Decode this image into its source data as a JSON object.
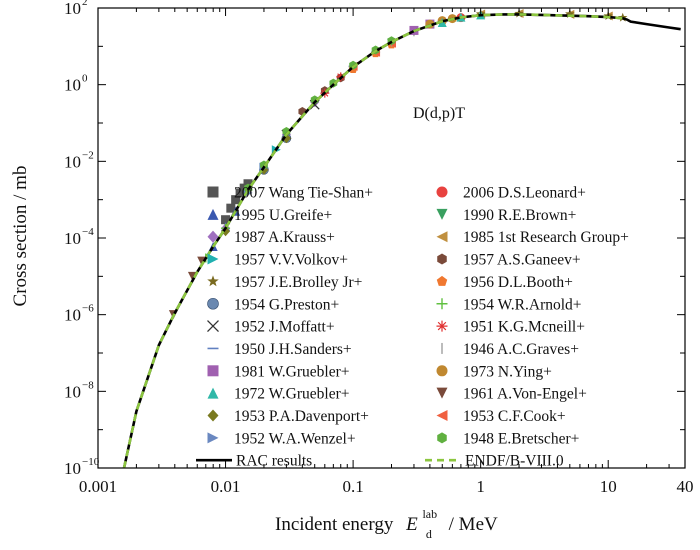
{
  "chart_data": {
    "type": "scatter",
    "title": "",
    "annotation": "D(d,p)T",
    "xlabel": "Incident energy",
    "xlabel_symbol": "E",
    "xlabel_sup": "lab",
    "xlabel_sub": "d",
    "xlabel_unit": "/ MeV",
    "ylabel": "Cross section / mb",
    "x_scale": "log",
    "y_scale": "log",
    "xlim": [
      0.001,
      40
    ],
    "ylim": [
      1e-10,
      100
    ],
    "x_ticks": [
      {
        "value": 0.001,
        "label": "0.001"
      },
      {
        "value": 0.01,
        "label": "0.01"
      },
      {
        "value": 0.1,
        "label": "0.1"
      },
      {
        "value": 1,
        "label": "1"
      },
      {
        "value": 10,
        "label": "10"
      },
      {
        "value": 40,
        "label": "40"
      }
    ],
    "y_ticks": [
      {
        "exp": -10,
        "base": "10",
        "sup": "−10"
      },
      {
        "exp": -8,
        "base": "10",
        "sup": "−8"
      },
      {
        "exp": -6,
        "base": "10",
        "sup": "−6"
      },
      {
        "exp": -4,
        "base": "10",
        "sup": "−4"
      },
      {
        "exp": -2,
        "base": "10",
        "sup": "−2"
      },
      {
        "exp": 0,
        "base": "10",
        "sup": "0"
      },
      {
        "exp": 2,
        "base": "10",
        "sup": "2"
      }
    ],
    "grid": false,
    "legend_placement": "lower-right, two columns",
    "curves": [
      {
        "name": "RAC results",
        "color": "#000000",
        "style": "solid",
        "x": [
          0.0016,
          0.002,
          0.003,
          0.004,
          0.006,
          0.008,
          0.01,
          0.015,
          0.02,
          0.03,
          0.05,
          0.07,
          0.1,
          0.15,
          0.2,
          0.3,
          0.5,
          0.7,
          1.0,
          1.5,
          2,
          3,
          5,
          7,
          10,
          13,
          14,
          15,
          20,
          30,
          37
        ],
        "y": [
          1e-10,
          3e-09,
          1.6e-07,
          1.1e-06,
          1.3e-05,
          6e-05,
          0.00018,
          0.0018,
          0.007,
          0.05,
          0.35,
          1.0,
          2.9,
          7.5,
          13,
          25,
          45,
          57,
          65,
          68,
          68,
          66,
          63,
          61,
          58,
          54,
          50,
          44,
          38,
          31,
          28
        ]
      },
      {
        "name": "ENDF/B-VIII.0",
        "color": "#8cc63f",
        "style": "dashed",
        "x": [
          0.0016,
          0.002,
          0.003,
          0.004,
          0.006,
          0.008,
          0.01,
          0.015,
          0.02,
          0.03,
          0.05,
          0.07,
          0.1,
          0.15,
          0.2,
          0.3,
          0.5,
          0.7,
          1.0,
          1.5,
          2,
          3,
          5,
          7,
          10,
          13
        ],
        "y": [
          1e-10,
          3e-09,
          1.6e-07,
          1.1e-06,
          1.3e-05,
          6e-05,
          0.00018,
          0.0018,
          0.007,
          0.05,
          0.35,
          1.0,
          2.9,
          7.5,
          13,
          25,
          45,
          57,
          65,
          68,
          68,
          66,
          63,
          61,
          58,
          54
        ]
      }
    ],
    "series": [
      {
        "name": "2007 Wang Tie-Shan+",
        "marker": "square",
        "color": "#555555",
        "x": [
          0.01,
          0.011,
          0.012,
          0.013,
          0.014,
          0.015
        ],
        "y": [
          0.0003,
          0.0006,
          0.001,
          0.0015,
          0.002,
          0.0026
        ]
      },
      {
        "name": "2006 D.S.Leonard+",
        "marker": "circle",
        "color": "#e8423f",
        "x": [
          0.5,
          0.7
        ],
        "y": [
          46,
          56
        ]
      },
      {
        "name": "1995 U.Greife+",
        "marker": "triangle-up",
        "color": "#3a58b0",
        "x": [
          0.008,
          0.01,
          0.012
        ],
        "y": [
          6e-05,
          0.0002,
          0.0005
        ]
      },
      {
        "name": "1990 R.E.Brown+",
        "marker": "triangle-down",
        "color": "#3aa060",
        "x": [
          0.2,
          0.3
        ],
        "y": [
          12,
          24
        ]
      },
      {
        "name": "1987 A.Krauss+",
        "marker": "diamond",
        "color": "#a070c0",
        "x": [
          0.01,
          0.015,
          0.03,
          0.05,
          0.1
        ],
        "y": [
          0.00018,
          0.0018,
          0.05,
          0.35,
          2.9
        ]
      },
      {
        "name": "1985 1st Research Group+",
        "marker": "triangle-left",
        "color": "#c09040",
        "x": [
          1,
          2,
          5,
          10
        ],
        "y": [
          70,
          72,
          68,
          62
        ]
      },
      {
        "name": "1957 V.V.Volkov+",
        "marker": "triangle-right",
        "color": "#20b0b0",
        "x": [
          0.02,
          0.025
        ],
        "y": [
          0.007,
          0.02
        ]
      },
      {
        "name": "1957 A.S.Ganeev+",
        "marker": "hexagon",
        "color": "#7a4a3a",
        "x": [
          0.04,
          0.06,
          0.08
        ],
        "y": [
          0.2,
          0.7,
          1.5
        ]
      },
      {
        "name": "1957 J.E.Brolley Jr+",
        "marker": "star",
        "color": "#7a6a20",
        "x": [
          0.3,
          0.5,
          1,
          2,
          5,
          10,
          13
        ],
        "y": [
          25,
          45,
          70,
          72,
          70,
          62,
          56
        ]
      },
      {
        "name": "1956 D.L.Booth+",
        "marker": "pentagon",
        "color": "#f07830",
        "x": [
          0.1,
          0.15,
          0.2
        ],
        "y": [
          2.5,
          6.5,
          11
        ]
      },
      {
        "name": "1954 G.Preston+",
        "marker": "sphere",
        "color": "#6a88b0",
        "x": [
          0.02,
          0.03
        ],
        "y": [
          0.006,
          0.04
        ]
      },
      {
        "name": "1954 W.R.Arnold+",
        "marker": "plus",
        "color": "#60c040",
        "x": [
          0.007,
          0.01,
          0.015
        ],
        "y": [
          3e-05,
          0.00018,
          0.0018
        ]
      },
      {
        "name": "1952 J.Moffatt+",
        "marker": "x",
        "color": "#333333",
        "x": [
          0.03,
          0.05
        ],
        "y": [
          0.05,
          0.3
        ]
      },
      {
        "name": "1951 K.G.Mcneill+",
        "marker": "asterisk",
        "color": "#e03030",
        "x": [
          0.06,
          0.08
        ],
        "y": [
          0.6,
          1.6
        ]
      },
      {
        "name": "1950 J.H.Sanders+",
        "marker": "dash",
        "color": "#6080c0",
        "x": [
          0.1,
          0.15
        ],
        "y": [
          3,
          7
        ]
      },
      {
        "name": "1946 A.C.Graves+",
        "marker": "vline",
        "color": "#a0a0a0",
        "x": [
          0.2,
          0.3
        ],
        "y": [
          13,
          24
        ]
      },
      {
        "name": "1981 W.Gruebler+",
        "marker": "square",
        "color": "#a060b0",
        "x": [
          0.3,
          0.4
        ],
        "y": [
          26,
          38
        ]
      },
      {
        "name": "1973 N.Ying+",
        "marker": "circle",
        "color": "#c08830",
        "x": [
          0.4,
          0.5,
          0.6
        ],
        "y": [
          38,
          47,
          53
        ]
      },
      {
        "name": "1972 W.Gruebler+",
        "marker": "triangle-up",
        "color": "#30b8a8",
        "x": [
          0.5,
          0.7,
          1
        ],
        "y": [
          42,
          58,
          66
        ]
      },
      {
        "name": "1961 A.Von-Engel+",
        "marker": "triangle-down",
        "color": "#7a4a3a",
        "x": [
          0.0039,
          0.0055,
          0.0065
        ],
        "y": [
          1e-06,
          1e-05,
          2.5e-05
        ]
      },
      {
        "name": "1953 P.A.Davenport+",
        "marker": "diamond",
        "color": "#7a7a20",
        "x": [
          0.01,
          0.02,
          0.03
        ],
        "y": [
          0.00015,
          0.006,
          0.04
        ]
      },
      {
        "name": "1953 C.F.Cook+",
        "marker": "triangle-left",
        "color": "#f06040",
        "x": [
          0.1,
          0.15,
          0.2
        ],
        "y": [
          3,
          7,
          12
        ]
      },
      {
        "name": "1952 W.A.Wenzel+",
        "marker": "triangle-right",
        "color": "#6a88c0",
        "x": [
          0.015,
          0.02
        ],
        "y": [
          0.0015,
          0.007
        ]
      },
      {
        "name": "1948 E.Bretscher+",
        "marker": "hexagon",
        "color": "#60b040",
        "x": [
          0.015,
          0.02,
          0.03,
          0.05,
          0.07,
          0.1,
          0.15,
          0.2
        ],
        "y": [
          0.002,
          0.008,
          0.06,
          0.4,
          1.1,
          3.2,
          8,
          14
        ]
      }
    ]
  }
}
